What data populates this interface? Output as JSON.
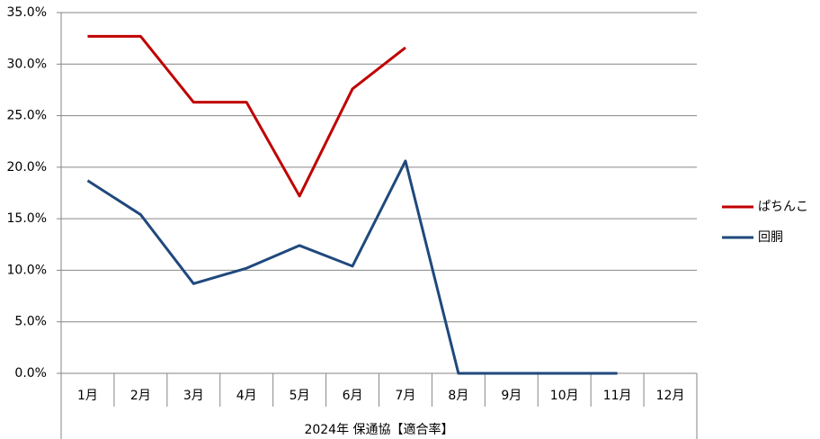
{
  "chart_data": {
    "type": "line",
    "x_label": "2024年 保通協【適合率】",
    "categories": [
      "1月",
      "2月",
      "3月",
      "4月",
      "5月",
      "6月",
      "7月",
      "8月",
      "9月",
      "10月",
      "11月",
      "12月"
    ],
    "series": [
      {
        "name": "ぱちんこ",
        "color": "#c00000",
        "values": [
          32.7,
          32.7,
          26.3,
          26.3,
          17.2,
          27.6,
          31.6,
          null,
          null,
          null,
          null,
          null
        ]
      },
      {
        "name": "回胴",
        "color": "#1f497d",
        "values": [
          18.7,
          15.4,
          8.7,
          10.2,
          12.4,
          10.4,
          20.6,
          0,
          0,
          0,
          0,
          null
        ]
      }
    ],
    "ylim": [
      0,
      35
    ],
    "yticks": [
      {
        "value": 0,
        "label": "0.0%"
      },
      {
        "value": 5,
        "label": "5.0%"
      },
      {
        "value": 10,
        "label": "10.0%"
      },
      {
        "value": 15,
        "label": "15.0%"
      },
      {
        "value": 20,
        "label": "20.0%"
      },
      {
        "value": 25,
        "label": "25.0%"
      },
      {
        "value": 30,
        "label": "30.0%"
      },
      {
        "value": 35,
        "label": "35.0%"
      }
    ],
    "grid": true,
    "legend": "right"
  }
}
